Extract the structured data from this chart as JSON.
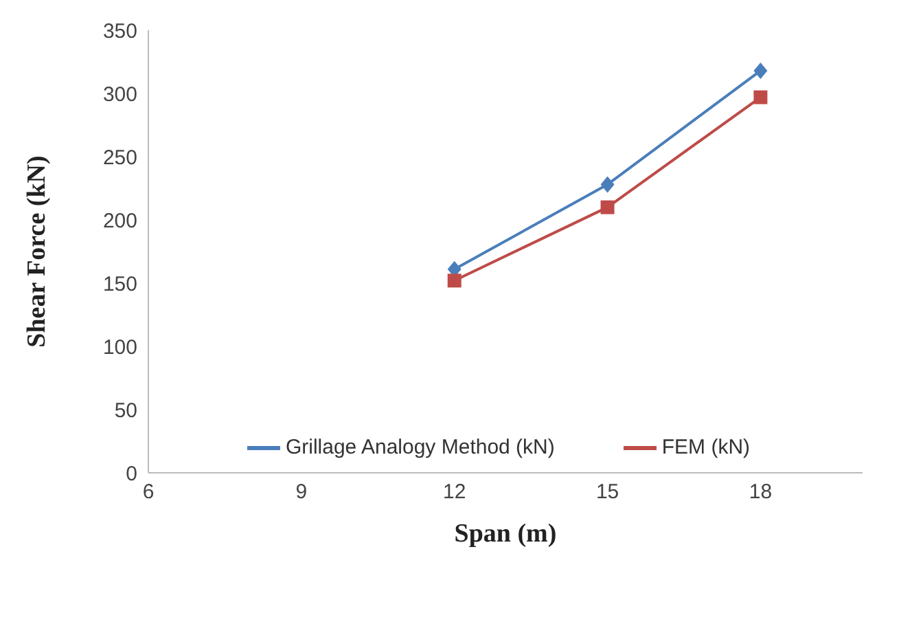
{
  "chart_data": {
    "type": "line",
    "xlabel": "Span (m)",
    "ylabel": "Shear Force (kN)",
    "x": [
      12,
      15,
      18
    ],
    "series": [
      {
        "name": "Grillage Analogy Method (kN)",
        "color": "#4a7ebb",
        "values": [
          161,
          228,
          318
        ],
        "marker": "diamond"
      },
      {
        "name": "FEM (kN)",
        "color": "#be4b48",
        "values": [
          152,
          210,
          297
        ],
        "marker": "square"
      }
    ],
    "xlim": [
      6,
      20
    ],
    "xticks": [
      6,
      9,
      12,
      15,
      18
    ],
    "ylim": [
      0,
      350
    ],
    "yticks": [
      0,
      50,
      100,
      150,
      200,
      250,
      300,
      350
    ],
    "grid": false,
    "legend": "bottom"
  }
}
